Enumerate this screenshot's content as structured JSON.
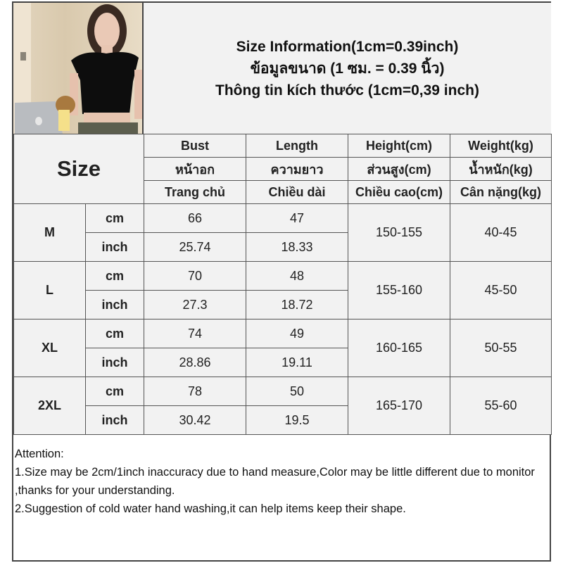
{
  "header": {
    "lines": [
      "Size Information(1cm=0.39inch)",
      "ข้อมูลขนาด (1 ซม. = 0.39 นิ้ว)",
      "Thông tin kích thước (1cm=0,39 inch)"
    ]
  },
  "table": {
    "size_label": "Size",
    "columns": [
      [
        "Bust",
        "หน้าอก",
        "Trang chủ"
      ],
      [
        "Length",
        "ความยาว",
        "Chiều dài"
      ],
      [
        "Height(cm)",
        "ส่วนสูง(cm)",
        "Chiều cao(cm)"
      ],
      [
        "Weight(kg)",
        "น้ำหนัก(kg)",
        "Cân nặng(kg)"
      ]
    ],
    "unit_cm": "cm",
    "unit_inch": "inch",
    "rows": [
      {
        "size": "M",
        "bust_cm": "66",
        "length_cm": "47",
        "bust_in": "25.74",
        "length_in": "18.33",
        "height": "150-155",
        "weight": "40-45"
      },
      {
        "size": "L",
        "bust_cm": "70",
        "length_cm": "48",
        "bust_in": "27.3",
        "length_in": "18.72",
        "height": "155-160",
        "weight": "45-50"
      },
      {
        "size": "XL",
        "bust_cm": "74",
        "length_cm": "49",
        "bust_in": "28.86",
        "length_in": "19.11",
        "height": "160-165",
        "weight": "50-55"
      },
      {
        "size": "2XL",
        "bust_cm": "78",
        "length_cm": "50",
        "bust_in": "30.42",
        "length_in": "19.5",
        "height": "165-170",
        "weight": "55-60"
      }
    ]
  },
  "attention": {
    "title": "Attention:",
    "lines": [
      "1.Size may be 2cm/1inch inaccuracy due to hand measure,Color may be little different due to monitor ,thanks for your understanding.",
      "2.Suggestion of cold water hand washing,it can help items keep their shape."
    ]
  }
}
